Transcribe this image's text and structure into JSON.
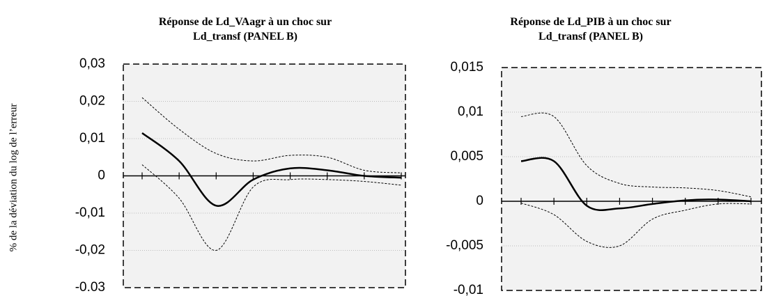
{
  "chart_data": [
    {
      "type": "line",
      "title": "Réponse de Ld_VAagr à un choc sur",
      "subtitle": "Ld_transf (PANEL B)",
      "ylabel": "% de la déviation du log de l’erreur",
      "categories": [
        null,
        null,
        null,
        null,
        null,
        null,
        null,
        null
      ],
      "ylim": [
        -0.03,
        0.03
      ],
      "yticks": [
        {
          "value": -0.03,
          "label": "-0.03"
        },
        {
          "value": -0.02,
          "label": "-0,02"
        },
        {
          "value": -0.01,
          "label": "-0,01"
        },
        0,
        {
          "value": 0.01,
          "label": "0,01"
        },
        {
          "value": 0.02,
          "label": "0,02"
        },
        {
          "value": 0.03,
          "label": "0,03"
        }
      ],
      "grid": true,
      "series": [
        {
          "color": "#000000",
          "style": "solid",
          "values": [
            0.0115,
            0.004,
            -0.008,
            -0.001,
            0.002,
            0.0015,
            0,
            -0.0005
          ]
        },
        {
          "color": "#000000",
          "style": "dashed",
          "values": [
            0.021,
            0.0125,
            0.006,
            0.004,
            0.0055,
            0.005,
            0.0015,
            0.0008
          ]
        },
        {
          "color": "#000000",
          "style": "dashed",
          "values": [
            0.003,
            -0.006,
            -0.02,
            -0.003,
            -0.001,
            -0.001,
            -0.0015,
            -0.0025
          ]
        }
      ]
    },
    {
      "type": "line",
      "title": "Réponse de Ld_PIB à un choc sur",
      "subtitle": "Ld_transf (PANEL B)",
      "categories": [
        null,
        null,
        null,
        null,
        null,
        null,
        null,
        null
      ],
      "ylim": [
        -0.01,
        0.015
      ],
      "yticks": [
        {
          "value": -0.01,
          "label": "-0,01"
        },
        {
          "value": -0.005,
          "label": "-0,005"
        },
        0,
        {
          "value": 0.005,
          "label": "0,005"
        },
        {
          "value": 0.01,
          "label": "0,01"
        },
        {
          "value": 0.015,
          "label": "0,015"
        }
      ],
      "grid": true,
      "series": [
        {
          "color": "#000000",
          "style": "solid",
          "values": [
            0.0045,
            0.0045,
            -0.0005,
            -0.0008,
            -0.0003,
            0.0001,
            0.0002,
            0
          ]
        },
        {
          "color": "#000000",
          "style": "dashed",
          "values": [
            0.0095,
            0.0095,
            0.004,
            0.002,
            0.0016,
            0.0015,
            0.0012,
            0.0005
          ]
        },
        {
          "color": "#000000",
          "style": "dashed",
          "values": [
            -0.0002,
            -0.0015,
            -0.0045,
            -0.005,
            -0.002,
            -0.001,
            -0.0003,
            -0.0003
          ]
        }
      ]
    }
  ]
}
